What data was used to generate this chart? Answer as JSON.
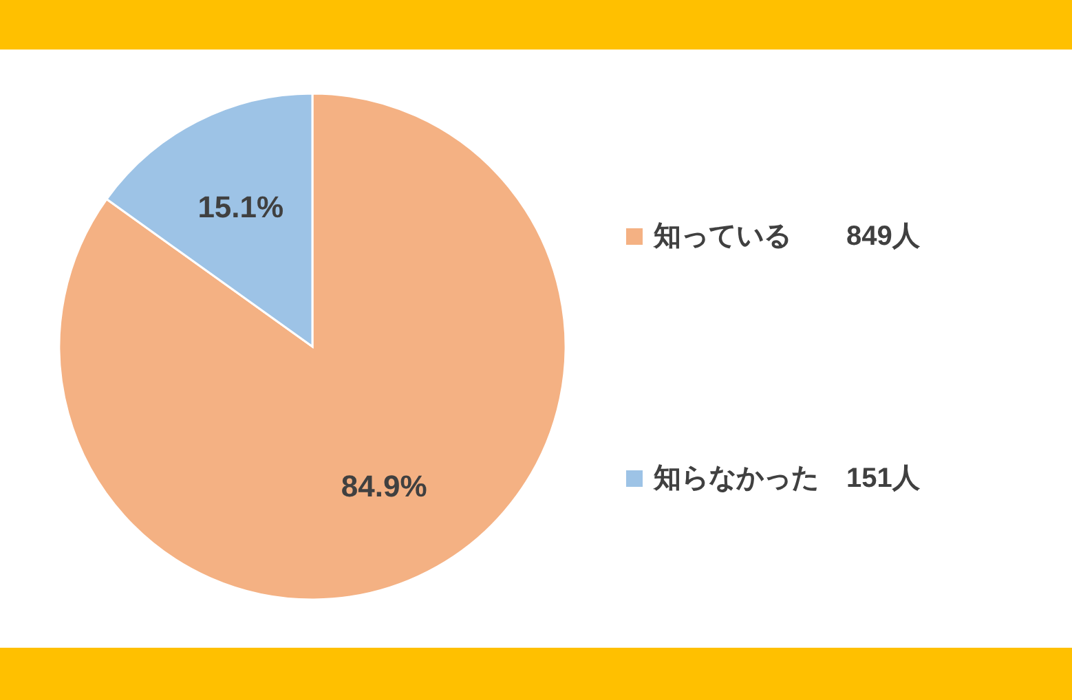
{
  "chart_data": {
    "type": "pie",
    "categories": [
      "知っている　　849人",
      "知らなかった　151人"
    ],
    "values": [
      84.9,
      15.1
    ],
    "value_labels": [
      "84.9%",
      "15.1%"
    ],
    "colors": [
      "#f4b183",
      "#9dc3e6"
    ],
    "legend": "right"
  }
}
